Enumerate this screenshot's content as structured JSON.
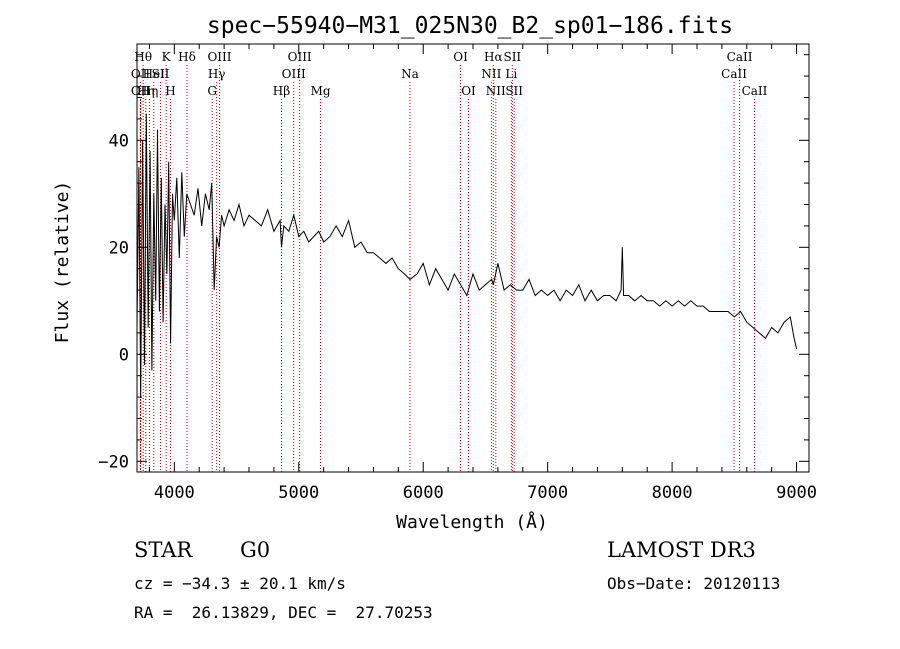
{
  "chart_data": {
    "type": "line",
    "title": "spec−55940−M31_025N30_B2_sp01−186.fits",
    "xlabel": "Wavelength (Å)",
    "ylabel": "Flux (relative)",
    "xlim": [
      3700,
      9100
    ],
    "ylim": [
      -22,
      58
    ],
    "x_ticks": [
      {
        "value": 4000,
        "label": "4000"
      },
      {
        "value": 5000,
        "label": "5000"
      },
      {
        "value": 6000,
        "label": "6000"
      },
      {
        "value": 7000,
        "label": "7000"
      },
      {
        "value": 8000,
        "label": "8000"
      },
      {
        "value": 9000,
        "label": "9000"
      }
    ],
    "y_ticks": [
      {
        "value": -20,
        "label": "−20"
      },
      {
        "value": 0,
        "label": "0"
      },
      {
        "value": 20,
        "label": "20"
      },
      {
        "value": 40,
        "label": "40"
      }
    ],
    "series": [
      {
        "name": "flux",
        "x": [
          3700,
          3715,
          3730,
          3745,
          3760,
          3775,
          3790,
          3805,
          3820,
          3835,
          3850,
          3865,
          3880,
          3895,
          3910,
          3925,
          3940,
          3955,
          3970,
          3985,
          4000,
          4020,
          4040,
          4060,
          4080,
          4100,
          4130,
          4160,
          4190,
          4220,
          4250,
          4280,
          4300,
          4320,
          4340,
          4360,
          4380,
          4400,
          4440,
          4480,
          4520,
          4560,
          4600,
          4650,
          4700,
          4750,
          4800,
          4850,
          4861,
          4880,
          4920,
          4960,
          5000,
          5040,
          5080,
          5120,
          5160,
          5200,
          5250,
          5300,
          5350,
          5400,
          5450,
          5500,
          5550,
          5600,
          5650,
          5700,
          5750,
          5800,
          5850,
          5893,
          5950,
          6000,
          6050,
          6100,
          6150,
          6200,
          6250,
          6300,
          6350,
          6400,
          6450,
          6500,
          6550,
          6563,
          6600,
          6650,
          6700,
          6750,
          6800,
          6850,
          6900,
          6950,
          7000,
          7050,
          7100,
          7150,
          7200,
          7250,
          7300,
          7350,
          7400,
          7450,
          7500,
          7550,
          7590,
          7600,
          7610,
          7650,
          7700,
          7750,
          7800,
          7850,
          7900,
          7950,
          8000,
          8050,
          8100,
          8150,
          8200,
          8250,
          8300,
          8350,
          8400,
          8450,
          8500,
          8550,
          8600,
          8650,
          8700,
          8750,
          8800,
          8850,
          8900,
          8950,
          8980,
          9000
        ],
        "y": [
          5,
          35,
          -8,
          40,
          -2,
          45,
          5,
          38,
          -3,
          30,
          10,
          42,
          8,
          33,
          6,
          28,
          15,
          36,
          2,
          30,
          25,
          33,
          18,
          34,
          22,
          30,
          28,
          26,
          31,
          24,
          30,
          27,
          32,
          12,
          22,
          20,
          26,
          24,
          27,
          25,
          28,
          24,
          26,
          25,
          24,
          27,
          23,
          25,
          20,
          24,
          23,
          26,
          22,
          23,
          21,
          22,
          23,
          21,
          22,
          24,
          22,
          25,
          20,
          21,
          19,
          19,
          18,
          17,
          18,
          16,
          15,
          14,
          15,
          17,
          13,
          16,
          14,
          12,
          15,
          13,
          11,
          15,
          12,
          13,
          14,
          13,
          17,
          12,
          13,
          12,
          12,
          14,
          11,
          12,
          11,
          12,
          10,
          12,
          11,
          13,
          10,
          12,
          10,
          11,
          11,
          10,
          12,
          20,
          11,
          11,
          10,
          11,
          10,
          10,
          9,
          10,
          9,
          10,
          9,
          10,
          9,
          9,
          8,
          8,
          8,
          8,
          7,
          8,
          6,
          5,
          4,
          3,
          5,
          4,
          6,
          7,
          3,
          1
        ]
      }
    ],
    "lines": [
      {
        "wave": 3728,
        "label": "OII",
        "row": 1
      },
      {
        "wave": 3728,
        "label": "OII",
        "row": 2
      },
      {
        "wave": 3750,
        "label": "Hθ",
        "row": 0
      },
      {
        "wave": 3770,
        "label": "Hη",
        "row": 2
      },
      {
        "wave": 3800,
        "label": "Hη",
        "row": 2
      },
      {
        "wave": 3835,
        "label": "HeI",
        "row": 1
      },
      {
        "wave": 3889,
        "label": "SII",
        "row": 1
      },
      {
        "wave": 3934,
        "label": "K",
        "row": 0
      },
      {
        "wave": 3969,
        "label": "H",
        "row": 2
      },
      {
        "wave": 4102,
        "label": "Hδ",
        "row": 0
      },
      {
        "wave": 4304,
        "label": "G",
        "row": 2
      },
      {
        "wave": 4340,
        "label": "Hγ",
        "row": 1
      },
      {
        "wave": 4363,
        "label": "OIII",
        "row": 0
      },
      {
        "wave": 4861,
        "label": "Hβ",
        "row": 2
      },
      {
        "wave": 4959,
        "label": "OIII",
        "row": 1
      },
      {
        "wave": 5007,
        "label": "OIII",
        "row": 0
      },
      {
        "wave": 5175,
        "label": "Mg",
        "row": 2
      },
      {
        "wave": 5893,
        "label": "Na",
        "row": 1
      },
      {
        "wave": 6300,
        "label": "OI",
        "row": 0
      },
      {
        "wave": 6364,
        "label": "OI",
        "row": 2
      },
      {
        "wave": 6548,
        "label": "NII",
        "row": 1
      },
      {
        "wave": 6563,
        "label": "Hα",
        "row": 0
      },
      {
        "wave": 6583,
        "label": "NII",
        "row": 2
      },
      {
        "wave": 6708,
        "label": "Li",
        "row": 1
      },
      {
        "wave": 6716,
        "label": "SII",
        "row": 0
      },
      {
        "wave": 6731,
        "label": "SII",
        "row": 2
      },
      {
        "wave": 8498,
        "label": "CaII",
        "row": 1
      },
      {
        "wave": 8542,
        "label": "CaII",
        "row": 0
      },
      {
        "wave": 8662,
        "label": "CaII",
        "row": 2
      }
    ]
  },
  "info": {
    "star_class": "STAR",
    "subclass": "G0",
    "survey": "LAMOST DR3",
    "cz": "cz = −34.3 ± 20.1 km/s",
    "obs_date": "Obs−Date: 20120113",
    "coords": "RA =  26.13829, DEC =  27.70253"
  }
}
